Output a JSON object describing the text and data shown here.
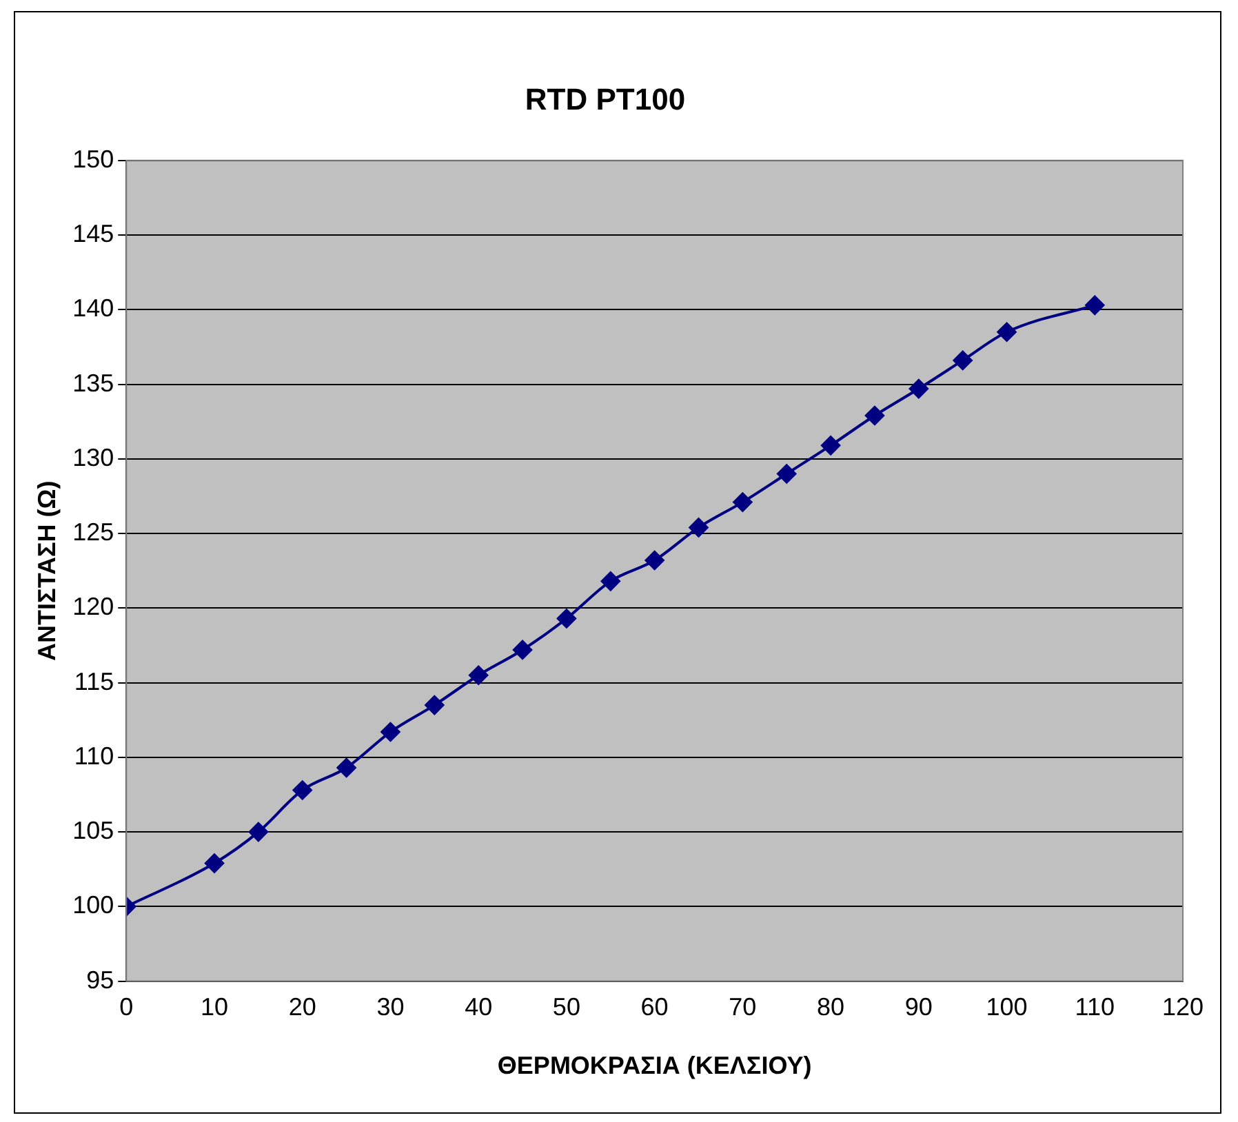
{
  "chart_data": {
    "type": "line",
    "title": "RTD PT100",
    "xlabel": "ΘΕΡΜΟΚΡΑΣΙΑ (ΚΕΛΣΙΟΥ)",
    "ylabel": "ΑΝΤΙΣΤΑΣΗ (Ω)",
    "x": [
      0,
      10,
      15,
      20,
      25,
      30,
      35,
      40,
      45,
      50,
      55,
      60,
      65,
      70,
      75,
      80,
      85,
      90,
      95,
      100,
      110
    ],
    "series": [
      {
        "color": "#000080",
        "values": [
          100,
          102.9,
          105.0,
          107.8,
          109.3,
          111.7,
          113.5,
          115.5,
          117.2,
          119.3,
          121.8,
          123.2,
          125.4,
          127.1,
          129.0,
          130.9,
          132.9,
          134.7,
          136.6,
          138.5,
          140.3
        ]
      }
    ],
    "xlim": [
      0,
      120
    ],
    "xticks": [
      0,
      10,
      20,
      30,
      40,
      50,
      60,
      70,
      80,
      90,
      100,
      110,
      120
    ],
    "ylim": [
      95,
      150
    ],
    "yticks": [
      95,
      100,
      105,
      110,
      115,
      120,
      125,
      130,
      135,
      140,
      145,
      150
    ],
    "grid": "y",
    "legend": false,
    "marker": "diamond",
    "line_style": "solid"
  }
}
